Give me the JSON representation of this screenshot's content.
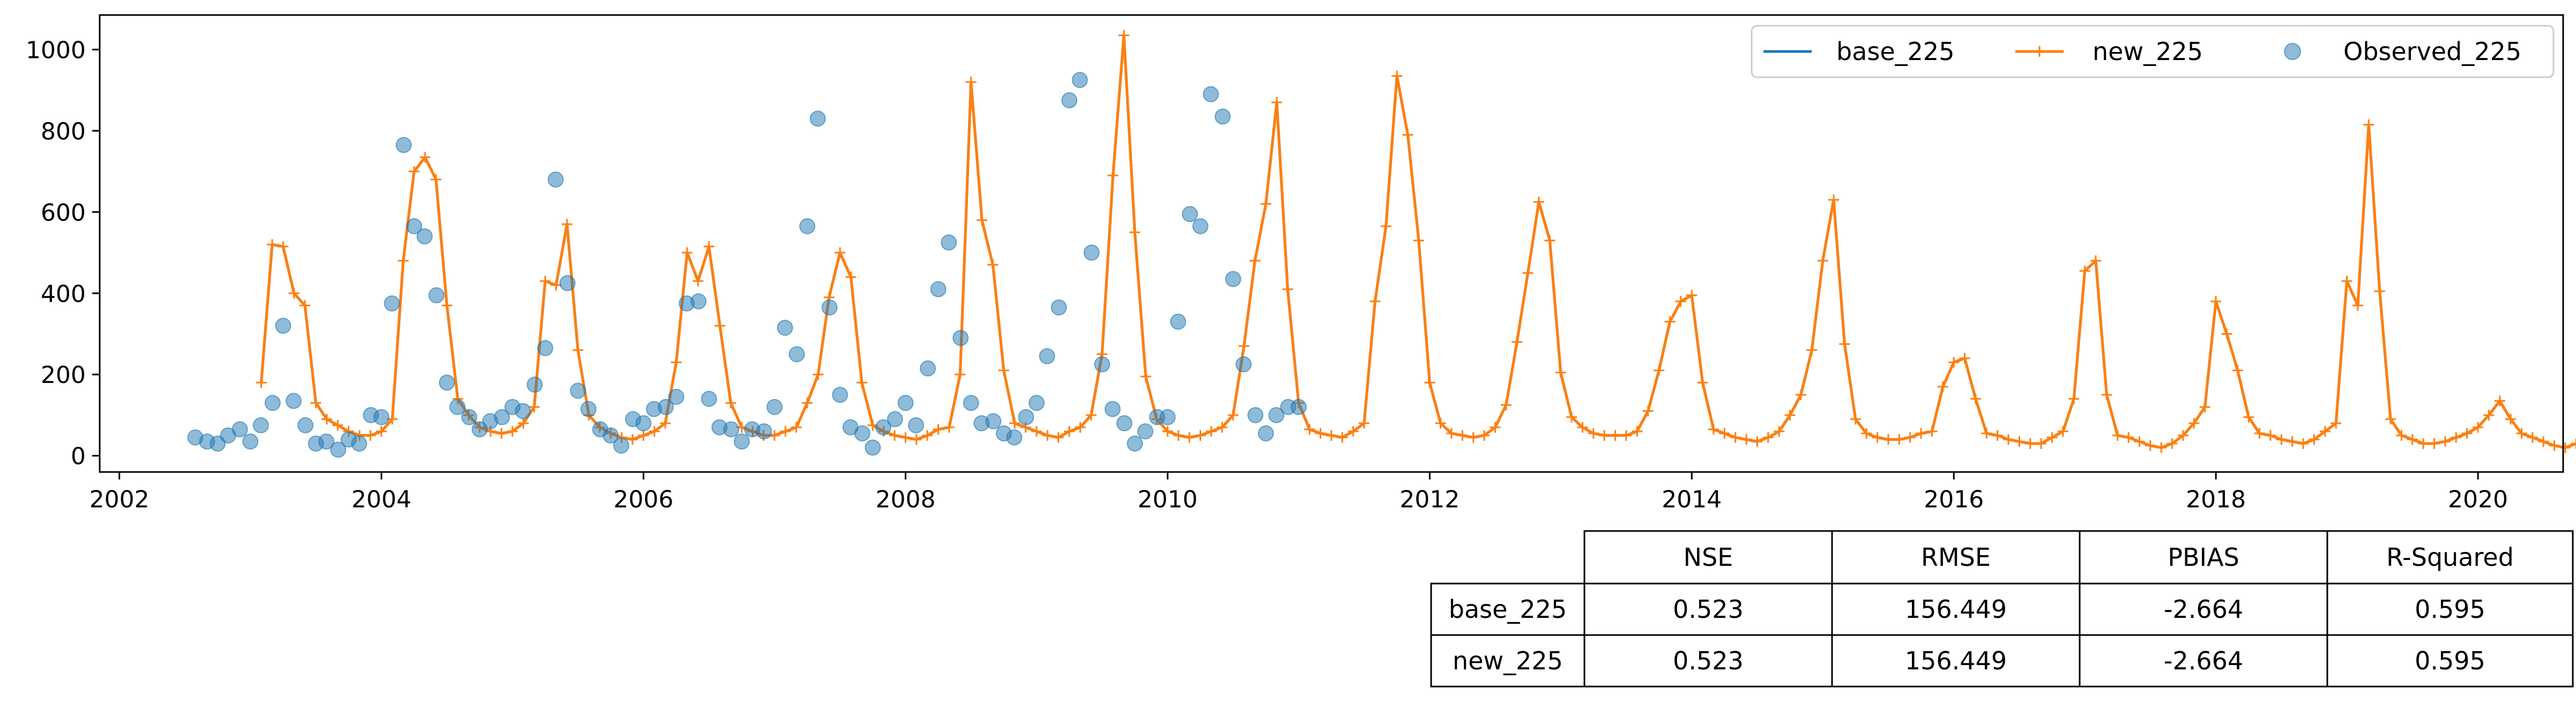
{
  "chart_data": {
    "type": "line",
    "xlabel": "",
    "ylabel": "",
    "xlim": [
      2001.85,
      2020.65
    ],
    "ylim": [
      -40,
      1085
    ],
    "x_ticks": [
      2002,
      2004,
      2006,
      2008,
      2010,
      2012,
      2014,
      2016,
      2018,
      2020
    ],
    "x_tick_labels": [
      "2002",
      "2004",
      "2006",
      "2008",
      "2010",
      "2012",
      "2014",
      "2016",
      "2018",
      "2020"
    ],
    "y_ticks": [
      0,
      200,
      400,
      600,
      800,
      1000
    ],
    "y_tick_labels": [
      "0",
      "200",
      "400",
      "600",
      "800",
      "1000"
    ],
    "grid": false,
    "legend": {
      "placement": "top-right",
      "entries": [
        "base_225",
        "new_225",
        "Observed_225"
      ]
    },
    "colors": {
      "base": "#1f77b4",
      "new": "#ff7f0e",
      "observed": "#1f77b4"
    },
    "series": [
      {
        "name": "base_225",
        "style": "line",
        "start_year": 2003.083,
        "step_years": 0.0833333,
        "values": [
          180,
          520,
          515,
          400,
          370,
          130,
          90,
          75,
          60,
          50,
          50,
          60,
          90,
          480,
          700,
          735,
          680,
          370,
          140,
          100,
          70,
          60,
          55,
          60,
          80,
          120,
          430,
          420,
          570,
          260,
          100,
          70,
          55,
          45,
          40,
          50,
          60,
          80,
          230,
          500,
          430,
          515,
          320,
          130,
          70,
          60,
          50,
          50,
          60,
          70,
          130,
          200,
          390,
          500,
          440,
          180,
          75,
          60,
          50,
          45,
          40,
          50,
          65,
          70,
          200,
          920,
          580,
          470,
          210,
          80,
          70,
          60,
          50,
          45,
          60,
          70,
          100,
          250,
          690,
          1035,
          550,
          195,
          90,
          60,
          50,
          45,
          50,
          60,
          70,
          100,
          270,
          480,
          620,
          870,
          410,
          130,
          65,
          55,
          50,
          45,
          60,
          80,
          380,
          565,
          935,
          790,
          530,
          180,
          80,
          55,
          50,
          45,
          50,
          70,
          125,
          280,
          450,
          625,
          530,
          205,
          95,
          70,
          55,
          50,
          50,
          50,
          60,
          110,
          210,
          330,
          380,
          395,
          180,
          65,
          55,
          45,
          40,
          35,
          45,
          60,
          100,
          150,
          260,
          480,
          630,
          275,
          90,
          55,
          45,
          40,
          40,
          45,
          55,
          60,
          170,
          230,
          240,
          140,
          55,
          50,
          40,
          35,
          30,
          30,
          45,
          60,
          140,
          455,
          480,
          150,
          50,
          45,
          35,
          25,
          20,
          30,
          50,
          80,
          120,
          380,
          300,
          210,
          95,
          55,
          50,
          40,
          35,
          30,
          40,
          60,
          80,
          430,
          370,
          815,
          405,
          90,
          50,
          40,
          30,
          30,
          35,
          45,
          55,
          70,
          100,
          135,
          90,
          55,
          45,
          35,
          25,
          20,
          30,
          40
        ]
      },
      {
        "name": "new_225",
        "style": "line-plus",
        "start_year": 2003.083,
        "step_years": 0.0833333,
        "values": [
          180,
          520,
          515,
          400,
          370,
          130,
          90,
          75,
          60,
          50,
          50,
          60,
          90,
          480,
          700,
          735,
          680,
          370,
          140,
          100,
          70,
          60,
          55,
          60,
          80,
          120,
          430,
          420,
          570,
          260,
          100,
          70,
          55,
          45,
          40,
          50,
          60,
          80,
          230,
          500,
          430,
          515,
          320,
          130,
          70,
          60,
          50,
          50,
          60,
          70,
          130,
          200,
          390,
          500,
          440,
          180,
          75,
          60,
          50,
          45,
          40,
          50,
          65,
          70,
          200,
          920,
          580,
          470,
          210,
          80,
          70,
          60,
          50,
          45,
          60,
          70,
          100,
          250,
          690,
          1035,
          550,
          195,
          90,
          60,
          50,
          45,
          50,
          60,
          70,
          100,
          270,
          480,
          620,
          870,
          410,
          130,
          65,
          55,
          50,
          45,
          60,
          80,
          380,
          565,
          935,
          790,
          530,
          180,
          80,
          55,
          50,
          45,
          50,
          70,
          125,
          280,
          450,
          625,
          530,
          205,
          95,
          70,
          55,
          50,
          50,
          50,
          60,
          110,
          210,
          330,
          380,
          395,
          180,
          65,
          55,
          45,
          40,
          35,
          45,
          60,
          100,
          150,
          260,
          480,
          630,
          275,
          90,
          55,
          45,
          40,
          40,
          45,
          55,
          60,
          170,
          230,
          240,
          140,
          55,
          50,
          40,
          35,
          30,
          30,
          45,
          60,
          140,
          455,
          480,
          150,
          50,
          45,
          35,
          25,
          20,
          30,
          50,
          80,
          120,
          380,
          300,
          210,
          95,
          55,
          50,
          40,
          35,
          30,
          40,
          60,
          80,
          430,
          370,
          815,
          405,
          90,
          50,
          40,
          30,
          30,
          35,
          45,
          55,
          70,
          100,
          135,
          90,
          55,
          45,
          35,
          25,
          20,
          30,
          40
        ]
      },
      {
        "name": "Observed_225",
        "style": "scatter",
        "points": [
          [
            2002.58,
            45
          ],
          [
            2002.67,
            35
          ],
          [
            2002.75,
            30
          ],
          [
            2002.83,
            50
          ],
          [
            2002.92,
            65
          ],
          [
            2003.0,
            35
          ],
          [
            2003.08,
            75
          ],
          [
            2003.17,
            130
          ],
          [
            2003.25,
            320
          ],
          [
            2003.33,
            135
          ],
          [
            2003.42,
            75
          ],
          [
            2003.5,
            30
          ],
          [
            2003.58,
            35
          ],
          [
            2003.67,
            15
          ],
          [
            2003.75,
            40
          ],
          [
            2003.83,
            30
          ],
          [
            2003.92,
            100
          ],
          [
            2004.0,
            95
          ],
          [
            2004.08,
            375
          ],
          [
            2004.17,
            765
          ],
          [
            2004.25,
            565
          ],
          [
            2004.33,
            540
          ],
          [
            2004.42,
            395
          ],
          [
            2004.5,
            180
          ],
          [
            2004.58,
            120
          ],
          [
            2004.67,
            95
          ],
          [
            2004.75,
            65
          ],
          [
            2004.83,
            85
          ],
          [
            2004.92,
            95
          ],
          [
            2005.0,
            120
          ],
          [
            2005.08,
            110
          ],
          [
            2005.17,
            175
          ],
          [
            2005.25,
            265
          ],
          [
            2005.33,
            680
          ],
          [
            2005.42,
            425
          ],
          [
            2005.5,
            160
          ],
          [
            2005.58,
            115
          ],
          [
            2005.67,
            65
          ],
          [
            2005.75,
            50
          ],
          [
            2005.83,
            25
          ],
          [
            2005.92,
            90
          ],
          [
            2006.0,
            80
          ],
          [
            2006.08,
            115
          ],
          [
            2006.17,
            120
          ],
          [
            2006.25,
            145
          ],
          [
            2006.33,
            375
          ],
          [
            2006.42,
            380
          ],
          [
            2006.5,
            140
          ],
          [
            2006.58,
            70
          ],
          [
            2006.67,
            65
          ],
          [
            2006.75,
            35
          ],
          [
            2006.83,
            65
          ],
          [
            2006.92,
            60
          ],
          [
            2007.0,
            120
          ],
          [
            2007.08,
            315
          ],
          [
            2007.17,
            250
          ],
          [
            2007.25,
            565
          ],
          [
            2007.33,
            830
          ],
          [
            2007.42,
            365
          ],
          [
            2007.5,
            150
          ],
          [
            2007.58,
            70
          ],
          [
            2007.67,
            55
          ],
          [
            2007.75,
            20
          ],
          [
            2007.83,
            70
          ],
          [
            2007.92,
            90
          ],
          [
            2008.0,
            130
          ],
          [
            2008.08,
            75
          ],
          [
            2008.17,
            215
          ],
          [
            2008.25,
            410
          ],
          [
            2008.33,
            525
          ],
          [
            2008.42,
            290
          ],
          [
            2008.5,
            130
          ],
          [
            2008.58,
            80
          ],
          [
            2008.67,
            85
          ],
          [
            2008.75,
            55
          ],
          [
            2008.83,
            45
          ],
          [
            2008.92,
            95
          ],
          [
            2009.0,
            130
          ],
          [
            2009.08,
            245
          ],
          [
            2009.17,
            365
          ],
          [
            2009.25,
            875
          ],
          [
            2009.33,
            925
          ],
          [
            2009.42,
            500
          ],
          [
            2009.5,
            225
          ],
          [
            2009.58,
            115
          ],
          [
            2009.67,
            80
          ],
          [
            2009.75,
            30
          ],
          [
            2009.83,
            60
          ],
          [
            2009.92,
            95
          ],
          [
            2010.0,
            95
          ],
          [
            2010.08,
            330
          ],
          [
            2010.17,
            595
          ],
          [
            2010.25,
            565
          ],
          [
            2010.33,
            890
          ],
          [
            2010.42,
            835
          ],
          [
            2010.5,
            435
          ],
          [
            2010.58,
            225
          ],
          [
            2010.67,
            100
          ],
          [
            2010.75,
            55
          ],
          [
            2010.83,
            100
          ],
          [
            2010.92,
            120
          ],
          [
            2011.0,
            120
          ]
        ]
      }
    ],
    "stats_table": {
      "headers": [
        "",
        "NSE",
        "RMSE",
        "PBIAS",
        "R-Squared"
      ],
      "rows": [
        [
          "base_225",
          "0.523",
          "156.449",
          "-2.664",
          "0.595"
        ],
        [
          "new_225",
          "0.523",
          "156.449",
          "-2.664",
          "0.595"
        ]
      ]
    }
  }
}
